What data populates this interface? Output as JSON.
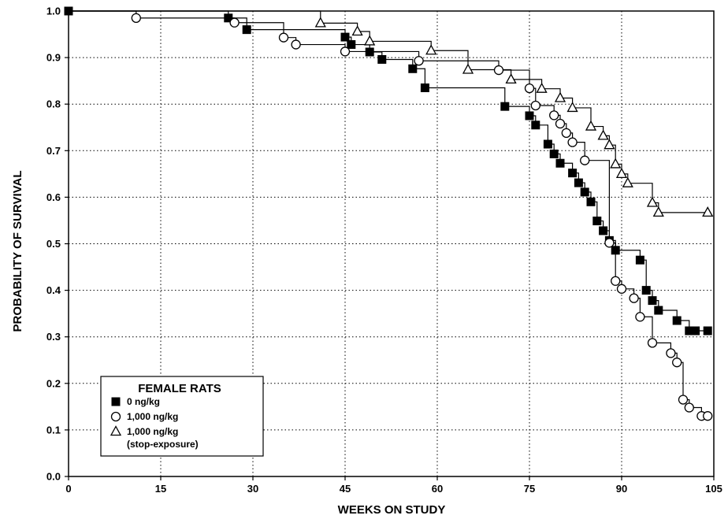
{
  "chart_data": {
    "type": "line",
    "title": "",
    "xlabel": "WEEKS ON STUDY",
    "ylabel": "PROBABILITY OF SURVIVAL",
    "xlim": [
      0,
      105
    ],
    "ylim": [
      0.0,
      1.0
    ],
    "xticks": [
      0,
      15,
      30,
      45,
      60,
      75,
      90,
      105
    ],
    "xtick_labels": [
      "0",
      "15",
      "30",
      "45",
      "60",
      "75",
      "90",
      "105"
    ],
    "yticks": [
      0.0,
      0.1,
      0.2,
      0.3,
      0.4,
      0.5,
      0.6,
      0.7,
      0.8,
      0.9,
      1.0
    ],
    "ytick_labels": [
      "0.0",
      "0.1",
      "0.2",
      "0.3",
      "0.4",
      "0.5",
      "0.6",
      "0.7",
      "0.8",
      "0.9",
      "1.0"
    ],
    "grid": true,
    "legend": {
      "title": "FEMALE RATS",
      "placement": "bottom-left"
    },
    "series": [
      {
        "name": "0 ng/kg",
        "marker": "filled-square",
        "color": "#000000",
        "x": [
          0,
          26,
          29,
          45,
          46,
          49,
          51,
          56,
          58,
          71,
          75,
          76,
          78,
          79,
          80,
          82,
          83,
          84,
          85,
          86,
          87,
          88,
          89,
          93,
          94,
          95,
          96,
          99,
          101,
          102,
          104
        ],
        "y": [
          1.0,
          0.985,
          0.96,
          0.944,
          0.928,
          0.912,
          0.896,
          0.876,
          0.835,
          0.795,
          0.775,
          0.755,
          0.714,
          0.693,
          0.673,
          0.652,
          0.631,
          0.611,
          0.59,
          0.549,
          0.528,
          0.507,
          0.486,
          0.465,
          0.4,
          0.378,
          0.357,
          0.335,
          0.313,
          0.313,
          0.313
        ]
      },
      {
        "name": "1,000 ng/kg",
        "marker": "open-circle",
        "color": "#000000",
        "x": [
          11,
          27,
          35,
          37,
          45,
          57,
          70,
          75,
          76,
          79,
          80,
          81,
          82,
          84,
          88,
          89,
          90,
          92,
          93,
          95,
          98,
          99,
          100,
          101,
          103,
          104
        ],
        "y": [
          0.985,
          0.975,
          0.943,
          0.928,
          0.913,
          0.893,
          0.873,
          0.834,
          0.797,
          0.776,
          0.758,
          0.738,
          0.718,
          0.679,
          0.502,
          0.42,
          0.403,
          0.383,
          0.343,
          0.287,
          0.265,
          0.245,
          0.165,
          0.148,
          0.13,
          0.13
        ]
      },
      {
        "name": "1,000 ng/kg (stop-exposure)",
        "label_lines": [
          "1,000 ng/kg",
          "(stop-exposure)"
        ],
        "marker": "open-triangle",
        "color": "#000000",
        "x": [
          41,
          47,
          49,
          59,
          65,
          72,
          77,
          80,
          82,
          85,
          87,
          88,
          89,
          90,
          91,
          95,
          96,
          104
        ],
        "y": [
          0.974,
          0.956,
          0.935,
          0.915,
          0.874,
          0.853,
          0.833,
          0.813,
          0.792,
          0.752,
          0.732,
          0.712,
          0.671,
          0.65,
          0.63,
          0.588,
          0.567,
          0.567
        ]
      }
    ]
  }
}
